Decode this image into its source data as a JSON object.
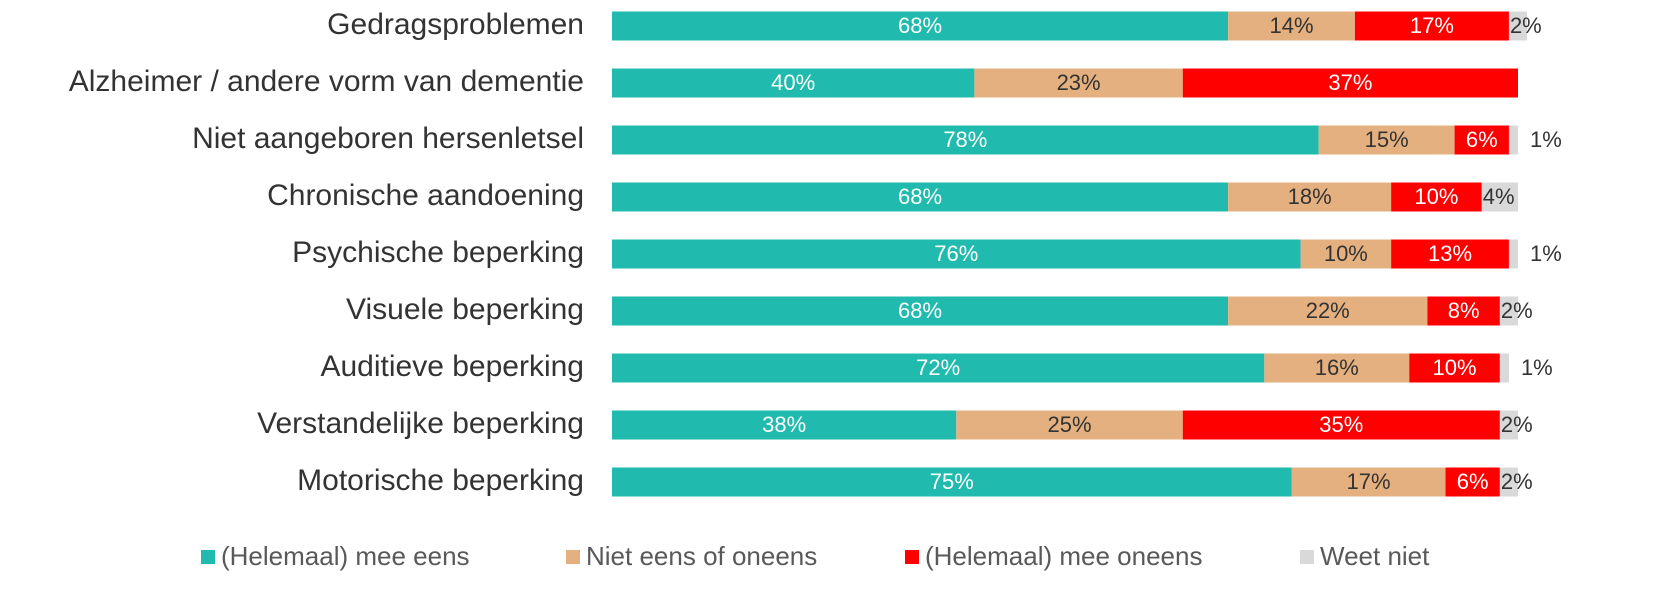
{
  "chart_data": {
    "type": "stacked-bar-horizontal",
    "categories": [
      "Gedragsproblemen",
      "Alzheimer / andere vorm van dementie",
      "Niet aangeboren hersenletsel",
      "Chronische aandoening",
      "Psychische beperking",
      "Visuele beperking",
      "Auditieve beperking",
      "Verstandelijke beperking",
      "Motorische beperking"
    ],
    "series": [
      {
        "name": "(Helemaal) mee eens",
        "color": "#20bbae",
        "label_color": "#ffffff",
        "values": [
          68,
          40,
          78,
          68,
          76,
          68,
          72,
          38,
          75
        ],
        "value_labels": [
          "68%",
          "40%",
          "78%",
          "68%",
          "76%",
          "68%",
          "72%",
          "38%",
          "75%"
        ]
      },
      {
        "name": "Niet eens of oneens",
        "color": "#e4b07f",
        "label_color": "#333333",
        "values": [
          14,
          23,
          15,
          18,
          10,
          22,
          16,
          25,
          17
        ],
        "value_labels": [
          "14%",
          "23%",
          "15%",
          "18%",
          "10%",
          "22%",
          "16%",
          "25%",
          "17%"
        ]
      },
      {
        "name": "(Helemaal) mee oneens",
        "color": "#ff0000",
        "label_color": "#ffffff",
        "values": [
          17,
          37,
          6,
          10,
          13,
          8,
          10,
          35,
          6
        ],
        "value_labels": [
          "17%",
          "37%",
          "6%",
          "10%",
          "13%",
          "8%",
          "10%",
          "35%",
          "6%"
        ]
      },
      {
        "name": "Weet niet",
        "color": "#d9d9d9",
        "label_color": "#333333",
        "values": [
          2,
          null,
          1,
          4,
          1,
          2,
          1,
          2,
          2
        ],
        "value_labels": [
          "2%",
          null,
          "1%",
          "4%",
          "1%",
          "2%",
          "1%",
          "2%",
          "2%"
        ]
      }
    ],
    "legend": "bottom"
  }
}
